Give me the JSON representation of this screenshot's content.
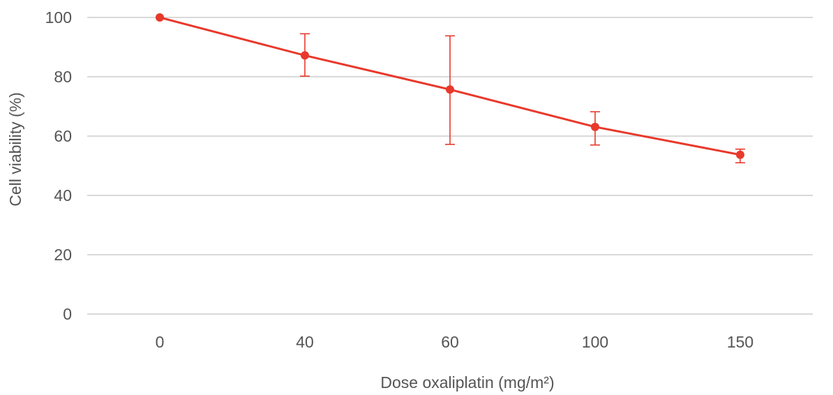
{
  "chart_data": {
    "type": "line",
    "categories": [
      "0",
      "40",
      "60",
      "100",
      "150"
    ],
    "series": [
      {
        "values": [
          100,
          87.2,
          75.7,
          63.1,
          53.7
        ],
        "error_upper": [
          100,
          94.5,
          93.8,
          68.2,
          55.6
        ],
        "error_lower": [
          100,
          80.2,
          57.2,
          57.0,
          51.0
        ],
        "color": "#e8392b"
      }
    ],
    "xlabel": "Dose oxaliplatin (mg/m²)",
    "ylabel": "Cell viability (%)",
    "ylim": [
      0,
      100
    ],
    "yticks": [
      "0",
      "20",
      "40",
      "60",
      "80",
      "100"
    ],
    "grid": true,
    "legend": "none"
  }
}
